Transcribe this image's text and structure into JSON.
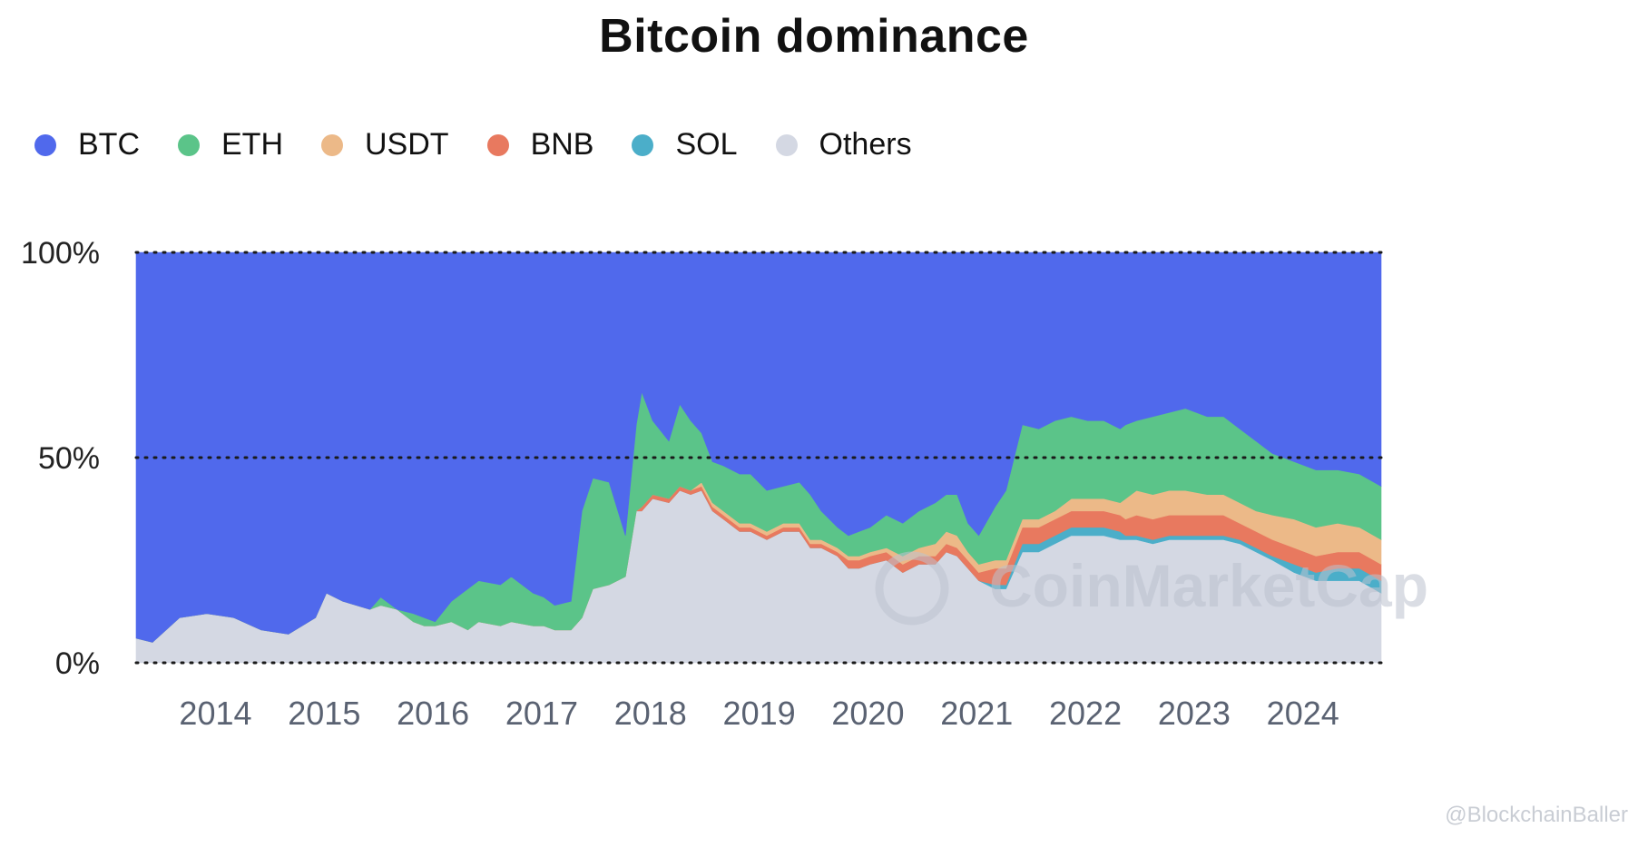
{
  "chart_data": {
    "type": "area",
    "stacked": true,
    "percent": true,
    "title": "Bitcoin dominance",
    "legend_position": "top-left",
    "y_ticks": [
      "0%",
      "50%",
      "100%"
    ],
    "ylim": [
      0,
      100
    ],
    "x_ticks": [
      "2014",
      "2015",
      "2016",
      "2017",
      "2018",
      "2019",
      "2020",
      "2021",
      "2022",
      "2023",
      "2024"
    ],
    "xlim": [
      2013.35,
      2024.8
    ],
    "grid": "dotted horizontal at 0%, 50%, 100%",
    "x": [
      2013.35,
      2013.5,
      2013.75,
      2014.0,
      2014.25,
      2014.5,
      2014.75,
      2015.0,
      2015.1,
      2015.25,
      2015.5,
      2015.6,
      2015.75,
      2015.9,
      2016.0,
      2016.1,
      2016.25,
      2016.4,
      2016.5,
      2016.7,
      2016.8,
      2017.0,
      2017.1,
      2017.2,
      2017.35,
      2017.45,
      2017.55,
      2017.7,
      2017.85,
      2017.95,
      2018.0,
      2018.1,
      2018.25,
      2018.35,
      2018.45,
      2018.55,
      2018.65,
      2018.75,
      2018.9,
      2019.0,
      2019.15,
      2019.3,
      2019.45,
      2019.55,
      2019.65,
      2019.8,
      2019.9,
      2020.0,
      2020.1,
      2020.25,
      2020.4,
      2020.55,
      2020.7,
      2020.8,
      2020.9,
      2021.0,
      2021.1,
      2021.25,
      2021.35,
      2021.5,
      2021.65,
      2021.8,
      2021.95,
      2022.1,
      2022.25,
      2022.4,
      2022.45,
      2022.55,
      2022.7,
      2022.85,
      2023.0,
      2023.2,
      2023.35,
      2023.5,
      2023.65,
      2023.8,
      2024.0,
      2024.2,
      2024.4,
      2024.6,
      2024.8
    ],
    "series": [
      {
        "name": "BTC",
        "color": "#5069ec",
        "values": [
          94,
          95,
          89,
          88,
          89,
          92,
          93,
          89,
          83,
          85,
          87,
          84,
          87,
          88,
          89,
          90,
          85,
          82,
          80,
          81,
          79,
          83,
          84,
          86,
          85,
          63,
          55,
          56,
          69,
          42,
          34,
          41,
          46,
          37,
          41,
          44,
          51,
          52,
          54,
          54,
          58,
          57,
          56,
          59,
          63,
          67,
          69,
          68,
          67,
          64,
          66,
          63,
          61,
          59,
          59,
          66,
          69,
          62,
          58,
          42,
          43,
          41,
          40,
          41,
          41,
          43,
          42,
          41,
          40,
          39,
          38,
          40,
          40,
          43,
          46,
          49,
          51,
          53,
          53,
          54,
          57
        ]
      },
      {
        "name": "ETH",
        "color": "#5bc489",
        "values": [
          0,
          0,
          0,
          0,
          0,
          0,
          0,
          0,
          0,
          0,
          0,
          2,
          0,
          2,
          2,
          1,
          5,
          10,
          10,
          10,
          11,
          8,
          7,
          6,
          7,
          26,
          27,
          25,
          10,
          21,
          28,
          18,
          14,
          20,
          17,
          12,
          10,
          11,
          12,
          12,
          10,
          9,
          10,
          11,
          7,
          5,
          5,
          6,
          6,
          8,
          8,
          9,
          10,
          9,
          10,
          7,
          7,
          13,
          17,
          23,
          22,
          22,
          20,
          19,
          19,
          18,
          18,
          17,
          19,
          19,
          20,
          19,
          19,
          18,
          17,
          15,
          14,
          14,
          13,
          13,
          13
        ]
      },
      {
        "name": "USDT",
        "color": "#ecb988",
        "values": [
          0,
          0,
          0,
          0,
          0,
          0,
          0,
          0,
          0,
          0,
          0,
          0,
          0,
          0,
          0,
          0,
          0,
          0,
          0,
          0,
          0,
          0,
          0,
          0,
          0,
          0,
          0,
          0,
          0,
          0,
          0,
          0,
          0,
          0,
          0,
          1,
          1,
          1,
          1,
          1,
          1,
          1,
          1,
          1,
          1,
          1,
          1,
          1,
          1,
          1,
          2,
          2,
          3,
          3,
          3,
          2,
          2,
          2,
          2,
          2,
          2,
          2,
          3,
          3,
          3,
          3,
          5,
          6,
          6,
          6,
          6,
          5,
          5,
          5,
          5,
          6,
          7,
          7,
          7,
          6,
          6
        ]
      },
      {
        "name": "BNB",
        "color": "#e8795f",
        "values": [
          0,
          0,
          0,
          0,
          0,
          0,
          0,
          0,
          0,
          0,
          0,
          0,
          0,
          0,
          0,
          0,
          0,
          0,
          0,
          0,
          0,
          0,
          0,
          0,
          0,
          0,
          0,
          0,
          0,
          0,
          1,
          1,
          1,
          1,
          1,
          1,
          1,
          1,
          1,
          1,
          1,
          1,
          1,
          1,
          1,
          1,
          2,
          2,
          2,
          2,
          2,
          2,
          2,
          2,
          2,
          2,
          2,
          4,
          4,
          4,
          4,
          4,
          4,
          4,
          4,
          4,
          4,
          5,
          5,
          5,
          5,
          5,
          5,
          4,
          4,
          4,
          4,
          4,
          4,
          4,
          4
        ]
      },
      {
        "name": "SOL",
        "color": "#4baec9",
        "values": [
          0,
          0,
          0,
          0,
          0,
          0,
          0,
          0,
          0,
          0,
          0,
          0,
          0,
          0,
          0,
          0,
          0,
          0,
          0,
          0,
          0,
          0,
          0,
          0,
          0,
          0,
          0,
          0,
          0,
          0,
          0,
          0,
          0,
          0,
          0,
          0,
          0,
          0,
          0,
          0,
          0,
          0,
          0,
          0,
          0,
          0,
          0,
          0,
          0,
          0,
          0,
          0,
          0,
          0,
          0,
          0,
          0,
          1,
          1,
          2,
          2,
          2,
          2,
          2,
          2,
          2,
          1,
          1,
          1,
          1,
          1,
          1,
          1,
          1,
          1,
          1,
          2,
          2,
          3,
          3,
          3
        ]
      },
      {
        "name": "Others",
        "color": "#d4d8e3",
        "values": [
          6,
          5,
          11,
          12,
          11,
          8,
          7,
          11,
          17,
          15,
          13,
          14,
          13,
          10,
          9,
          9,
          10,
          8,
          10,
          9,
          10,
          9,
          9,
          8,
          8,
          11,
          18,
          19,
          21,
          37,
          37,
          40,
          39,
          42,
          41,
          42,
          37,
          35,
          32,
          32,
          30,
          32,
          32,
          28,
          28,
          26,
          23,
          23,
          24,
          25,
          22,
          24,
          24,
          27,
          26,
          23,
          20,
          18,
          18,
          27,
          27,
          29,
          31,
          31,
          31,
          30,
          30,
          30,
          29,
          30,
          30,
          30,
          30,
          29,
          27,
          25,
          22,
          20,
          20,
          20,
          17
        ]
      }
    ]
  },
  "watermark": "CoinMarketCap",
  "credit": "@BlockchainBaller"
}
